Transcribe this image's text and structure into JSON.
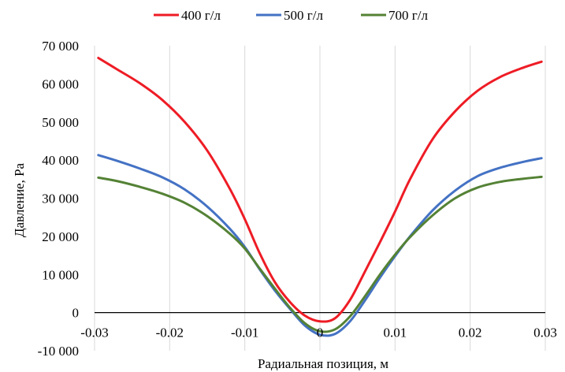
{
  "chart_data": {
    "type": "line",
    "title": "",
    "xlabel": "Радиальная позиция, м",
    "ylabel": "Давление, Pa",
    "xlim": [
      -0.03,
      0.03
    ],
    "ylim": [
      -10000,
      70000
    ],
    "x_ticks": [
      -0.03,
      -0.02,
      -0.01,
      0,
      0.01,
      0.02,
      0.03
    ],
    "x_tick_labels": [
      "-0.03",
      "-0.02",
      "-0.01",
      "0",
      "0.01",
      "0.02",
      "0.03"
    ],
    "y_ticks": [
      -10000,
      0,
      10000,
      20000,
      30000,
      40000,
      50000,
      60000,
      70000
    ],
    "y_tick_labels": [
      "-10 000",
      "0",
      "10 000",
      "20 000",
      "30 000",
      "40 000",
      "50 000",
      "60 000",
      "70 000"
    ],
    "grid": "vertical",
    "legend_position": "top",
    "series": [
      {
        "name": "400 г/л",
        "color": "#ee1c25",
        "x": [
          -0.0295,
          -0.027,
          -0.024,
          -0.021,
          -0.018,
          -0.015,
          -0.012,
          -0.01,
          -0.008,
          -0.006,
          -0.004,
          -0.002,
          0,
          0.002,
          0.004,
          0.006,
          0.008,
          0.01,
          0.012,
          0.015,
          0.018,
          0.021,
          0.024,
          0.027,
          0.0295
        ],
        "y": [
          66800,
          63800,
          60200,
          55800,
          50000,
          42500,
          32500,
          24500,
          15500,
          8000,
          2800,
          -800,
          -2300,
          -1500,
          3300,
          10800,
          18500,
          26500,
          35000,
          45500,
          52800,
          58200,
          61800,
          64200,
          65800
        ]
      },
      {
        "name": "500 г/л",
        "color": "#4472c4",
        "x": [
          -0.0295,
          -0.027,
          -0.024,
          -0.021,
          -0.018,
          -0.015,
          -0.012,
          -0.01,
          -0.008,
          -0.006,
          -0.004,
          -0.002,
          0,
          0.002,
          0.004,
          0.006,
          0.008,
          0.01,
          0.012,
          0.015,
          0.018,
          0.021,
          0.024,
          0.027,
          0.0295
        ],
        "y": [
          41300,
          39800,
          37800,
          35500,
          32300,
          27800,
          22000,
          17200,
          11300,
          5800,
          1000,
          -3400,
          -5800,
          -5600,
          -2300,
          3200,
          9200,
          14800,
          20000,
          26800,
          32000,
          35800,
          38000,
          39500,
          40500
        ]
      },
      {
        "name": "700 г/л",
        "color": "#548235",
        "x": [
          -0.0295,
          -0.027,
          -0.024,
          -0.021,
          -0.018,
          -0.015,
          -0.012,
          -0.01,
          -0.008,
          -0.006,
          -0.004,
          -0.002,
          0,
          0.002,
          0.004,
          0.006,
          0.008,
          0.01,
          0.012,
          0.015,
          0.018,
          0.021,
          0.024,
          0.027,
          0.0295
        ],
        "y": [
          35400,
          34500,
          33000,
          31200,
          28800,
          25300,
          20700,
          16800,
          11500,
          6300,
          1300,
          -2800,
          -4900,
          -4400,
          -1000,
          4300,
          10000,
          15200,
          19800,
          25500,
          30000,
          32800,
          34300,
          35100,
          35600
        ]
      }
    ]
  }
}
